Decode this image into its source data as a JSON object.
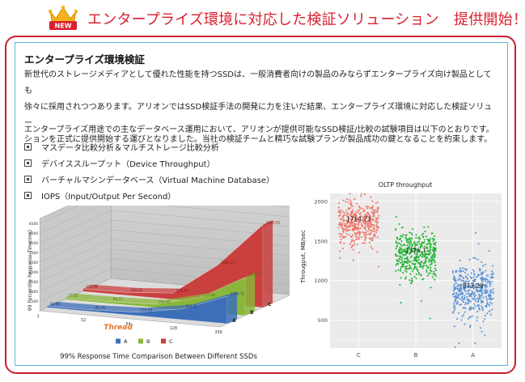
{
  "header": {
    "badge": "NEW",
    "title": "エンタープライズ環境に対応した検証ソリューション　提供開始！"
  },
  "section": {
    "title": "エンタープライズ環境検証",
    "paragraph_lines": [
      "新世代のストレージメディアとして優れた性能を持つSSDは、一般消費者向けの製品のみならずエンタープライズ向け製品としても",
      "徐々に採用されつつあります。アリオンではSSD検証手法の開発に力を注いだ結果、エンタープライズ環境に対応した検証ソリュー",
      "ションを正式に提供開始する運びとなりました。当社の検証チームと精巧な試験プランが製品成功の鍵となることを約束します。"
    ],
    "intro": "エンタープライズ用途での主なデータベース運用において、アリオンが提供可能なSSD検証/比較の試験項目は以下のとおりです。",
    "items": [
      "マスデータ比較分析＆マルチストレージ比較分析",
      "デバイススループット（Device Throughput）",
      "バーチャルマシンデータベース（Virtual Machine Database）",
      "IOPS（Input/Output Per Second）"
    ]
  },
  "colors": {
    "header_red": "#d8202f",
    "frame_red": "#c8202c",
    "inner_blue": "#5bb3d8",
    "series_a": "#3d6fb8",
    "series_b": "#8ab73a",
    "series_c": "#c9403f"
  },
  "chart_data": [
    {
      "type": "area",
      "title": "99% Response Time Comparison Between Different SSDs",
      "xlabel": "Thread",
      "ylabel": "99 Percentile Response Time(ms)",
      "categories": [
        "1",
        "32",
        "64",
        "128",
        "256"
      ],
      "y_ticks": [
        "500",
        "1000",
        "1500",
        "2000",
        "2500",
        "3000",
        "3500",
        "4000",
        "4500"
      ],
      "ylim": [
        0,
        4500
      ],
      "series": [
        {
          "name": "A",
          "color": "#3d6fb8",
          "values": [
            64.64,
            89.38,
            175.89,
            554.03,
            1414.71
          ],
          "value_labels": [
            "64.64",
            "89.38",
            "175.89",
            "554.03",
            "1414.71"
          ]
        },
        {
          "name": "B",
          "color": "#8ab73a",
          "values": [
            77.22,
            94.77,
            165.46,
            727.02,
            1975.32
          ],
          "value_labels": [
            "77.22",
            "94.77",
            "165.46",
            "727.02",
            "1975.32"
          ]
        },
        {
          "name": "C",
          "color": "#c9403f",
          "values": [
            115.98,
            150.22,
            328.39,
            1981.13,
            4260.01
          ],
          "value_labels": [
            "115.98",
            "150.22",
            "328.39",
            "1981.13",
            "4260.01"
          ]
        }
      ],
      "legend": [
        "A",
        "B",
        "C"
      ],
      "legend_position": "bottom"
    },
    {
      "type": "scatter",
      "title": "OLTP throughput",
      "ylabel": "Througput, MB/sec",
      "categories": [
        "C",
        "B",
        "A"
      ],
      "y_ticks": [
        "500",
        "1000",
        "1500",
        "2000"
      ],
      "ylim": [
        150,
        2100
      ],
      "means": [
        1714.73,
        1326.1,
        873.29
      ],
      "mean_labels": [
        "1714.73",
        "1326.1",
        "873.29"
      ],
      "colors": [
        "#f0756b",
        "#1fb532",
        "#5a93d8"
      ],
      "grid": true
    }
  ]
}
